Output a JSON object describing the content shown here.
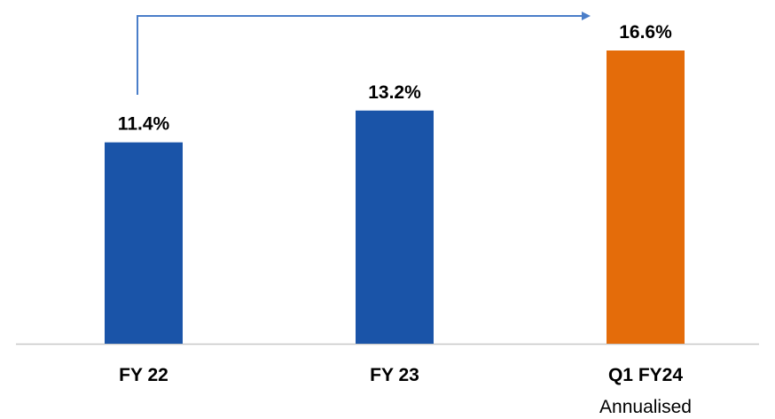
{
  "chart_data": {
    "type": "bar",
    "categories": [
      "FY 22",
      "FY 23",
      "Q1 FY24"
    ],
    "category_sublabels": [
      "",
      "",
      "Annualised"
    ],
    "values": [
      11.4,
      13.2,
      16.6
    ],
    "value_labels": [
      "11.4%",
      "13.2%",
      "16.6%"
    ],
    "bar_colors": [
      "#1a54a8",
      "#1a54a8",
      "#e46c0a"
    ],
    "arrow_color": "#4a7ec9",
    "axis_color": "#c8c8c8",
    "ylim": [
      0,
      16.6
    ],
    "grid": false,
    "title": "",
    "xlabel": "",
    "ylabel": ""
  }
}
